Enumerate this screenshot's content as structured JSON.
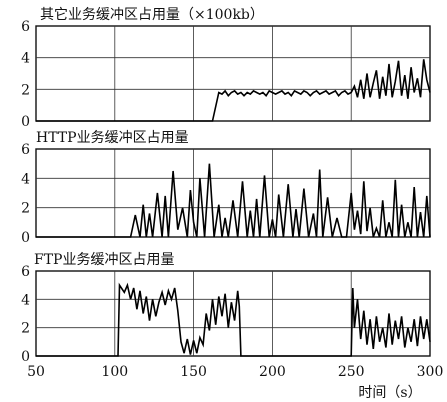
{
  "chart_data": {
    "type": "line",
    "xaxis": {
      "range": [
        50,
        300
      ],
      "ticks": [
        50,
        100,
        150,
        200,
        250,
        300
      ],
      "label": "时间（s）"
    },
    "grid": true,
    "panels": [
      {
        "title": "其它业务缓冲区占用量（×100kb）",
        "ylim": [
          0,
          6
        ],
        "yticks": [
          0,
          2,
          4,
          6
        ],
        "series": [
          {
            "x": [
              50,
              162,
              166,
              168,
              170,
              172,
              174,
              176,
              178,
              180,
              182,
              184,
              186,
              188,
              190,
              192,
              194,
              196,
              198,
              200,
              202,
              204,
              206,
              208,
              210,
              212,
              214,
              216,
              218,
              220,
              222,
              224,
              226,
              228,
              230,
              232,
              234,
              236,
              238,
              240,
              242,
              244,
              246,
              248,
              250,
              252,
              254,
              256,
              258,
              260,
              262,
              264,
              266,
              268,
              270,
              272,
              274,
              276,
              278,
              280,
              282,
              284,
              286,
              288,
              290,
              292,
              294,
              296,
              298,
              300
            ],
            "y": [
              0,
              0,
              1.8,
              1.7,
              1.9,
              1.6,
              1.8,
              1.9,
              1.7,
              1.8,
              1.6,
              1.8,
              1.7,
              1.9,
              1.8,
              1.7,
              1.8,
              1.6,
              1.9,
              1.8,
              1.7,
              1.8,
              1.9,
              1.7,
              1.8,
              1.6,
              1.9,
              1.8,
              1.7,
              1.9,
              1.8,
              1.6,
              1.8,
              1.9,
              1.7,
              1.8,
              1.9,
              1.7,
              1.8,
              1.9,
              1.6,
              1.8,
              1.9,
              1.7,
              1.8,
              2.2,
              1.5,
              2.6,
              1.4,
              3.0,
              1.5,
              2.4,
              3.2,
              1.4,
              2.8,
              1.6,
              3.6,
              1.5,
              2.5,
              3.8,
              1.6,
              2.9,
              1.4,
              3.4,
              1.8,
              2.7,
              1.5,
              3.9,
              2.6,
              1.8
            ]
          }
        ]
      },
      {
        "title": "HTTP业务缓冲区占用量",
        "ylim": [
          0,
          6
        ],
        "yticks": [
          0,
          2,
          4,
          6
        ],
        "series": [
          {
            "x": [
              50,
              110,
              113,
              116,
              118,
              120,
              122,
              124,
              127,
              130,
              132,
              134,
              137,
              140,
              143,
              146,
              148,
              150,
              152,
              154,
              157,
              160,
              163,
              166,
              168,
              170,
              172,
              175,
              178,
              181,
              184,
              186,
              188,
              190,
              192,
              195,
              198,
              200,
              202,
              204,
              207,
              210,
              213,
              215,
              217,
              220,
              223,
              226,
              228,
              230,
              232,
              235,
              238,
              241,
              244,
              247,
              250,
              252,
              254,
              256,
              258,
              260,
              262,
              264,
              266,
              268,
              270,
              272,
              274,
              276,
              278,
              280,
              282,
              284,
              286,
              288,
              290,
              292,
              294,
              296,
              298,
              300
            ],
            "y": [
              0,
              0,
              1.5,
              0,
              2.2,
              0,
              1.6,
              0,
              3.0,
              0,
              2.8,
              0,
              4.5,
              0.5,
              2.0,
              0,
              3.2,
              1.0,
              0,
              4.0,
              0,
              5.0,
              0,
              2.2,
              0,
              1.3,
              0,
              2.5,
              0,
              3.8,
              0,
              1.8,
              0,
              2.6,
              0,
              4.2,
              0,
              1.2,
              0,
              2.9,
              0,
              3.6,
              0,
              1.9,
              0,
              3.3,
              0,
              1.6,
              0,
              4.6,
              0,
              2.7,
              0,
              1.3,
              0,
              0,
              3.0,
              0.5,
              1.8,
              0.2,
              3.8,
              0.4,
              2.0,
              0,
              0.6,
              0,
              2.5,
              0,
              1.0,
              0,
              3.9,
              0,
              2.2,
              0,
              1.0,
              0,
              3.4,
              0,
              1.7,
              0,
              2.8,
              0
            ]
          }
        ]
      },
      {
        "title": "FTP业务缓冲区占用量",
        "ylim": [
          0,
          6
        ],
        "yticks": [
          0,
          2,
          4,
          6
        ],
        "series": [
          {
            "x": [
              50,
              102,
              103,
              106,
              108,
              110,
              112,
              114,
              116,
              118,
              120,
              122,
              124,
              126,
              128,
              130,
              132,
              134,
              136,
              138,
              140,
              142,
              144,
              146,
              148,
              150,
              152,
              154,
              156,
              158,
              160,
              162,
              164,
              166,
              168,
              170,
              172,
              174,
              176,
              178,
              179,
              180,
              250,
              251,
              252,
              254,
              256,
              258,
              260,
              262,
              264,
              266,
              268,
              270,
              272,
              274,
              276,
              278,
              280,
              282,
              284,
              286,
              288,
              290,
              292,
              294,
              296,
              298,
              300
            ],
            "y": [
              0,
              0,
              5.0,
              4.5,
              5.0,
              4.0,
              4.8,
              3.3,
              4.6,
              3.0,
              4.2,
              2.5,
              4.0,
              2.8,
              3.8,
              4.5,
              3.6,
              4.6,
              4.0,
              4.8,
              3.2,
              1.0,
              0.2,
              1.2,
              0.1,
              1.1,
              0.2,
              1.3,
              0.8,
              3.0,
              1.8,
              4.0,
              2.2,
              4.2,
              2.8,
              4.4,
              2.0,
              3.8,
              2.5,
              4.6,
              3.5,
              0,
              0,
              4.8,
              2.0,
              4.0,
              1.2,
              3.2,
              0.8,
              2.6,
              0.5,
              2.8,
              1.0,
              2.0,
              0.6,
              3.0,
              0.8,
              2.5,
              1.2,
              2.8,
              0.6,
              2.0,
              1.0,
              2.6,
              0.7,
              2.8,
              1.2,
              2.6,
              1.0
            ]
          }
        ]
      }
    ]
  }
}
